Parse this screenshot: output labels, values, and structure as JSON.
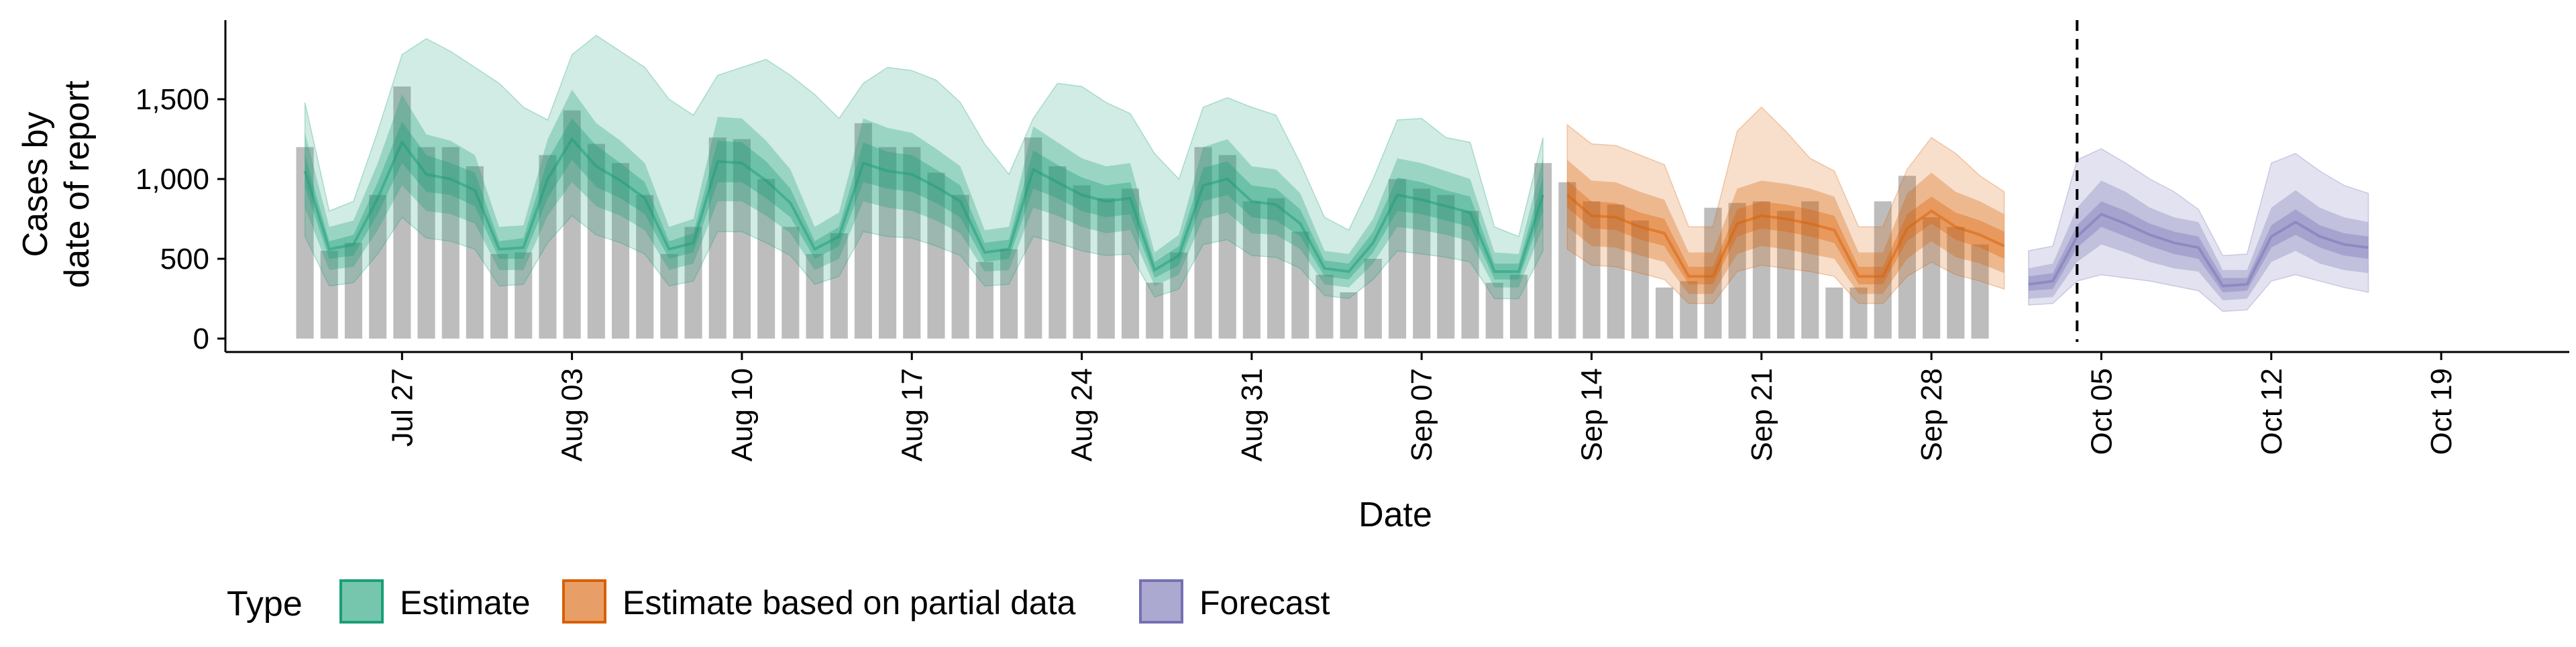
{
  "chart_data": {
    "type": "area",
    "xlabel": "Date",
    "ylabel_lines": [
      "Cases by",
      "date of report"
    ],
    "x_ticks": [
      "Jul 27",
      "Aug 03",
      "Aug 10",
      "Aug 17",
      "Aug 24",
      "Aug 31",
      "Sep 07",
      "Sep 14",
      "Sep 21",
      "Sep 28",
      "Oct 05",
      "Oct 12",
      "Oct 19"
    ],
    "y_ticks": [
      "0",
      "500",
      "1,000",
      "1,500"
    ],
    "ylim": [
      0,
      1950
    ],
    "xlim": [
      "2020-07-20",
      "2020-10-24"
    ],
    "legend": {
      "title": "Type",
      "placement": "bottom"
    },
    "vline_date": "2020-10-04",
    "bars": {
      "start_date": "2020-07-23",
      "values": [
        1200,
        550,
        600,
        900,
        1580,
        1200,
        1200,
        1080,
        530,
        540,
        1150,
        1430,
        1220,
        1100,
        900,
        530,
        700,
        1260,
        1250,
        1000,
        700,
        530,
        660,
        1350,
        1200,
        1200,
        1040,
        900,
        480,
        560,
        1260,
        1080,
        960,
        880,
        940,
        350,
        540,
        1200,
        1150,
        860,
        880,
        670,
        400,
        290,
        500,
        1000,
        940,
        900,
        800,
        350,
        400,
        1100,
        980,
        860,
        840,
        740,
        320,
        360,
        820,
        850,
        860,
        800,
        860,
        320,
        320,
        860,
        1020,
        760,
        700,
        590
      ]
    },
    "series": [
      {
        "name": "Estimate",
        "color": "#1B9E77",
        "start_date": "2020-07-23",
        "median": [
          1050,
          560,
          590,
          880,
          1230,
          1030,
          1000,
          930,
          560,
          570,
          1000,
          1250,
          1080,
          990,
          880,
          560,
          600,
          1110,
          1100,
          990,
          850,
          560,
          640,
          1100,
          1050,
          1030,
          950,
          860,
          540,
          560,
          1060,
          980,
          900,
          860,
          880,
          430,
          520,
          960,
          1000,
          860,
          840,
          720,
          440,
          420,
          600,
          900,
          870,
          830,
          790,
          420,
          420,
          900
        ],
        "iqr_low": [
          950,
          500,
          520,
          780,
          1100,
          920,
          900,
          830,
          500,
          500,
          880,
          1120,
          950,
          880,
          780,
          500,
          540,
          980,
          980,
          880,
          760,
          500,
          580,
          980,
          940,
          920,
          850,
          760,
          480,
          500,
          940,
          880,
          800,
          760,
          780,
          380,
          460,
          860,
          900,
          760,
          740,
          640,
          390,
          370,
          540,
          800,
          780,
          740,
          700,
          370,
          370,
          800
        ],
        "iqr_high": [
          1150,
          610,
          650,
          980,
          1360,
          1150,
          1100,
          1040,
          610,
          630,
          1120,
          1380,
          1210,
          1100,
          980,
          610,
          660,
          1240,
          1230,
          1110,
          940,
          610,
          700,
          1230,
          1170,
          1150,
          1060,
          960,
          600,
          620,
          1180,
          1090,
          1010,
          960,
          980,
          480,
          580,
          1070,
          1110,
          960,
          940,
          810,
          490,
          470,
          670,
          1010,
          980,
          930,
          890,
          470,
          470,
          1010
        ],
        "ci50_low": [
          820,
          430,
          450,
          680,
          960,
          800,
          780,
          720,
          430,
          430,
          770,
          980,
          830,
          770,
          680,
          430,
          470,
          860,
          860,
          770,
          660,
          430,
          500,
          860,
          820,
          800,
          740,
          660,
          420,
          430,
          820,
          770,
          700,
          660,
          680,
          330,
          400,
          750,
          790,
          660,
          650,
          560,
          340,
          320,
          470,
          700,
          680,
          650,
          610,
          320,
          320,
          700
        ],
        "ci50_high": [
          1290,
          700,
          740,
          1100,
          1530,
          1280,
          1240,
          1150,
          700,
          710,
          1250,
          1560,
          1350,
          1240,
          1100,
          700,
          750,
          1390,
          1380,
          1240,
          1060,
          700,
          790,
          1380,
          1320,
          1290,
          1190,
          1080,
          680,
          700,
          1330,
          1230,
          1130,
          1080,
          1100,
          540,
          650,
          1200,
          1250,
          1080,
          1060,
          910,
          550,
          530,
          750,
          1130,
          1100,
          1050,
          1000,
          540,
          530,
          1130
        ],
        "ci90_low": [
          640,
          330,
          350,
          530,
          760,
          630,
          610,
          560,
          330,
          340,
          600,
          770,
          650,
          600,
          530,
          330,
          360,
          670,
          670,
          600,
          520,
          340,
          390,
          670,
          640,
          630,
          580,
          520,
          330,
          340,
          640,
          600,
          550,
          520,
          530,
          260,
          310,
          590,
          620,
          520,
          510,
          440,
          270,
          250,
          370,
          550,
          530,
          510,
          480,
          250,
          250,
          550
        ],
        "ci90_high": [
          1480,
          800,
          860,
          1300,
          1780,
          1880,
          1800,
          1700,
          1600,
          1450,
          1370,
          1780,
          1900,
          1800,
          1700,
          1500,
          1400,
          1650,
          1700,
          1750,
          1650,
          1530,
          1380,
          1600,
          1700,
          1680,
          1620,
          1480,
          1220,
          1030,
          1380,
          1600,
          1580,
          1480,
          1410,
          1160,
          1000,
          1450,
          1510,
          1450,
          1400,
          1100,
          760,
          680,
          1000,
          1370,
          1380,
          1260,
          1230,
          700,
          640,
          1260
        ]
      },
      {
        "name": "Estimate based on partial data",
        "color": "#D95F02",
        "start_date": "2020-09-13",
        "median": [
          900,
          770,
          760,
          700,
          660,
          390,
          390,
          720,
          770,
          750,
          720,
          680,
          390,
          390,
          690,
          800,
          700,
          650,
          580
        ],
        "iqr_low": [
          820,
          690,
          680,
          620,
          580,
          340,
          340,
          640,
          690,
          670,
          640,
          600,
          340,
          340,
          610,
          720,
          620,
          570,
          500
        ],
        "iqr_high": [
          990,
          860,
          850,
          790,
          750,
          450,
          450,
          810,
          860,
          840,
          810,
          770,
          450,
          450,
          780,
          890,
          790,
          740,
          670
        ],
        "ci50_low": [
          700,
          580,
          570,
          520,
          480,
          280,
          280,
          530,
          580,
          560,
          530,
          500,
          280,
          280,
          500,
          610,
          510,
          470,
          410
        ],
        "ci50_high": [
          1120,
          990,
          980,
          920,
          870,
          540,
          540,
          940,
          990,
          970,
          940,
          890,
          540,
          540,
          910,
          1040,
          920,
          860,
          780
        ],
        "ci90_low": [
          560,
          460,
          450,
          410,
          370,
          220,
          220,
          420,
          460,
          440,
          420,
          390,
          220,
          220,
          390,
          480,
          400,
          360,
          310
        ],
        "ci90_high": [
          1340,
          1220,
          1210,
          1150,
          1090,
          700,
          700,
          1300,
          1450,
          1300,
          1130,
          1050,
          700,
          700,
          1060,
          1260,
          1160,
          1020,
          920
        ]
      },
      {
        "name": "Forecast",
        "color": "#7570B3",
        "start_date": "2020-10-02",
        "median": [
          340,
          360,
          640,
          780,
          720,
          650,
          600,
          570,
          330,
          340,
          640,
          730,
          640,
          590,
          570
        ],
        "iqr_low": [
          300,
          310,
          570,
          700,
          640,
          580,
          530,
          500,
          290,
          300,
          570,
          650,
          570,
          520,
          500
        ],
        "iqr_high": [
          390,
          410,
          710,
          860,
          800,
          720,
          670,
          640,
          380,
          380,
          710,
          810,
          710,
          660,
          640
        ],
        "ci50_low": [
          250,
          260,
          480,
          590,
          540,
          480,
          440,
          420,
          240,
          250,
          480,
          550,
          470,
          430,
          410
        ],
        "ci50_high": [
          440,
          470,
          820,
          990,
          920,
          820,
          760,
          730,
          430,
          430,
          820,
          930,
          820,
          760,
          730
        ],
        "ci90_low": [
          210,
          220,
          360,
          400,
          380,
          360,
          330,
          300,
          170,
          180,
          360,
          400,
          360,
          320,
          290
        ],
        "ci90_high": [
          550,
          580,
          1120,
          1190,
          1100,
          1000,
          920,
          810,
          520,
          530,
          1100,
          1160,
          1050,
          960,
          910
        ]
      }
    ]
  }
}
